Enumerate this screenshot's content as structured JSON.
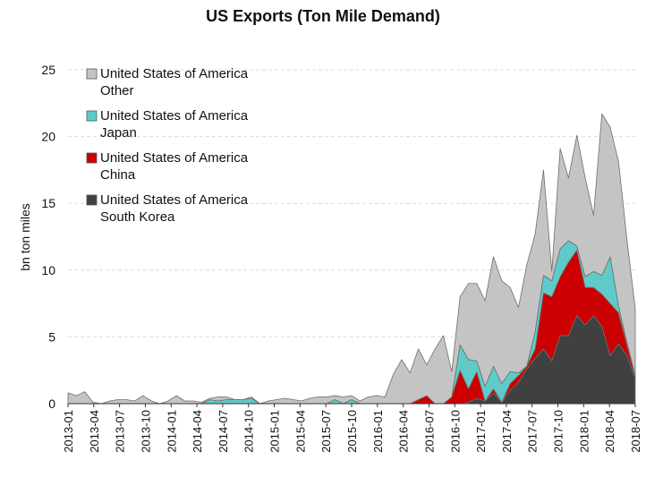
{
  "chart_data": {
    "type": "area",
    "stacked": true,
    "title": "US Exports (Ton Mile Demand)",
    "ylabel": "bn ton miles",
    "xlabel": "",
    "ylim": [
      0,
      25
    ],
    "yticks": [
      0,
      5,
      10,
      15,
      20,
      25
    ],
    "grid": "horizontal dashed",
    "legend_position": "top-left",
    "x_tick_labels": [
      "2013-01",
      "2013-04",
      "2013-07",
      "2013-10",
      "2014-01",
      "2014-04",
      "2014-07",
      "2014-10",
      "2015-01",
      "2015-04",
      "2015-07",
      "2015-10",
      "2016-01",
      "2016-04",
      "2016-07",
      "2016-10",
      "2017-01",
      "2017-04",
      "2017-07",
      "2017-10",
      "2018-01",
      "2018-04",
      "2018-07"
    ],
    "x_start": "2013-01",
    "x_end": "2018-07",
    "series": [
      {
        "name": "United States of America South Korea",
        "legend_line1": "United States of America",
        "legend_line2": "South Korea",
        "color": "#404040",
        "values": [
          0,
          0,
          0,
          0,
          0,
          0,
          0,
          0,
          0,
          0,
          0,
          0,
          0,
          0,
          0,
          0,
          0,
          0,
          0,
          0,
          0,
          0,
          0,
          0,
          0,
          0,
          0,
          0,
          0,
          0,
          0,
          0,
          0,
          0,
          0,
          0,
          0,
          0,
          0,
          0,
          0,
          0,
          0,
          0,
          0,
          0,
          0,
          0,
          0.1,
          0.4,
          0.2,
          0.8,
          0.1,
          1.0,
          1.6,
          2.6,
          3.4,
          4.1,
          3.2,
          5.1,
          5.1,
          6.6,
          5.9,
          6.6,
          5.8,
          3.6,
          4.5,
          3.6,
          1.9
        ]
      },
      {
        "name": "United States of America China",
        "legend_line1": "United States of America",
        "legend_line2": "China",
        "color": "#cc0000",
        "values": [
          0,
          0,
          0,
          0,
          0,
          0,
          0,
          0,
          0,
          0,
          0,
          0,
          0,
          0,
          0,
          0,
          0,
          0,
          0,
          0,
          0,
          0,
          0,
          0,
          0,
          0,
          0,
          0,
          0,
          0,
          0,
          0,
          0,
          0,
          0,
          0,
          0,
          0,
          0,
          0,
          0,
          0,
          0.3,
          0.6,
          0,
          0,
          0.5,
          2.5,
          1,
          2,
          0,
          0.3,
          0,
          0.5,
          0.5,
          0.2,
          0.7,
          4.2,
          4.8,
          4.4,
          5.5,
          4.9,
          2.8,
          2.1,
          2.4,
          3.9,
          2.3,
          0.8,
          0.1
        ]
      },
      {
        "name": "United States of America Japan",
        "legend_line1": "United States of America",
        "legend_line2": "Japan",
        "color": "#5ecbc8",
        "values": [
          0,
          0,
          0,
          0,
          0,
          0,
          0,
          0,
          0,
          0,
          0,
          0,
          0,
          0,
          0,
          0,
          0,
          0.3,
          0.2,
          0.3,
          0.3,
          0.3,
          0.4,
          0,
          0,
          0,
          0,
          0,
          0,
          0,
          0,
          0,
          0.3,
          0,
          0.3,
          0,
          0,
          0,
          0,
          0,
          0,
          0,
          0,
          0,
          0,
          0,
          0,
          1.9,
          2.2,
          0.8,
          1.1,
          1.7,
          1.4,
          0.9,
          0.2,
          0,
          1.3,
          1.3,
          1.2,
          2.1,
          1.6,
          0.3,
          0.8,
          1.2,
          1.4,
          3.5,
          0.5,
          0.2,
          0.1
        ]
      },
      {
        "name": "United States of America Other",
        "legend_line1": "United States of America",
        "legend_line2": "Other",
        "color": "#c4c4c4",
        "values": [
          0.8,
          0.6,
          0.9,
          0.1,
          0,
          0.2,
          0.3,
          0.3,
          0.2,
          0.6,
          0.2,
          0,
          0.2,
          0.6,
          0.2,
          0.2,
          0.1,
          0.1,
          0.3,
          0.2,
          0,
          0,
          0.1,
          0,
          0.2,
          0.3,
          0.4,
          0.3,
          0.2,
          0.4,
          0.5,
          0.5,
          0.3,
          0.5,
          0.3,
          0.2,
          0.5,
          0.6,
          0.5,
          2.2,
          3.3,
          2.3,
          3.8,
          2.3,
          4.1,
          5.1,
          1.9,
          3.6,
          5.7,
          5.8,
          6.4,
          8.2,
          7.7,
          6.3,
          4.9,
          7.6,
          7.3,
          7.9,
          0.7,
          7.5,
          4.7,
          8.3,
          7.4,
          4.2,
          12.1,
          9.7,
          10.8,
          7.7,
          5.0
        ]
      }
    ]
  }
}
